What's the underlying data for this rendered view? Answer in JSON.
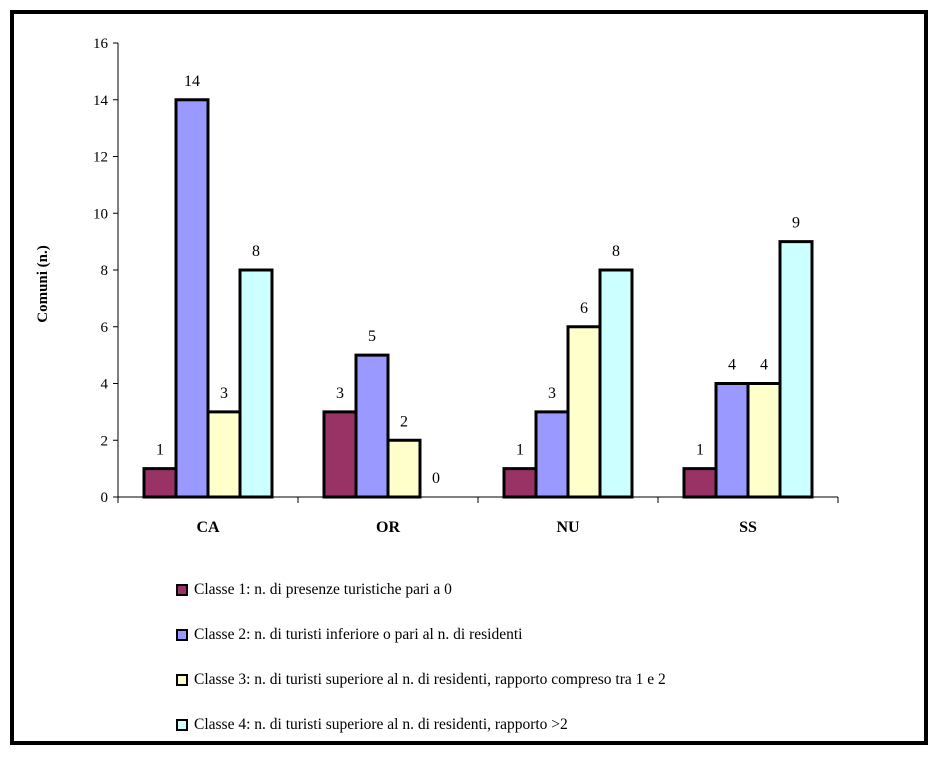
{
  "chart_data": {
    "type": "bar",
    "title": "",
    "ylabel": "Comuni (n.)",
    "xlabel": "",
    "ylim": [
      0,
      16
    ],
    "yticks": [
      0,
      2,
      4,
      6,
      8,
      10,
      12,
      14,
      16
    ],
    "yticks_labels": [
      "0",
      "2",
      "4",
      "6",
      "8",
      "10",
      "12",
      "14",
      "16"
    ],
    "categories": [
      "CA",
      "OR",
      "NU",
      "SS"
    ],
    "series": [
      {
        "name": "Classe 1: n. di presenze turistiche pari a 0",
        "color": "#993366",
        "values": [
          1,
          3,
          1,
          1
        ],
        "labels": [
          "1",
          "3",
          "1",
          "1"
        ]
      },
      {
        "name": "Classe 2: n. di turisti inferiore o pari al n. di residenti",
        "color": "#9999ff",
        "values": [
          14,
          5,
          3,
          4
        ],
        "labels": [
          "14",
          "5",
          "3",
          "4"
        ]
      },
      {
        "name": "Classe 3: n. di turisti superiore al n. di residenti, rapporto compreso tra 1 e 2",
        "color": "#ffffcc",
        "values": [
          3,
          2,
          6,
          4
        ],
        "labels": [
          "3",
          "2",
          "6",
          "4"
        ]
      },
      {
        "name": "Classe 4:  n. di turisti superiore al n. di residenti, rapporto >2",
        "color": "#ccffff",
        "values": [
          8,
          0,
          8,
          9
        ],
        "labels": [
          "8",
          "0",
          "8",
          "9"
        ]
      }
    ],
    "legend_position": "bottom",
    "grid": false
  }
}
